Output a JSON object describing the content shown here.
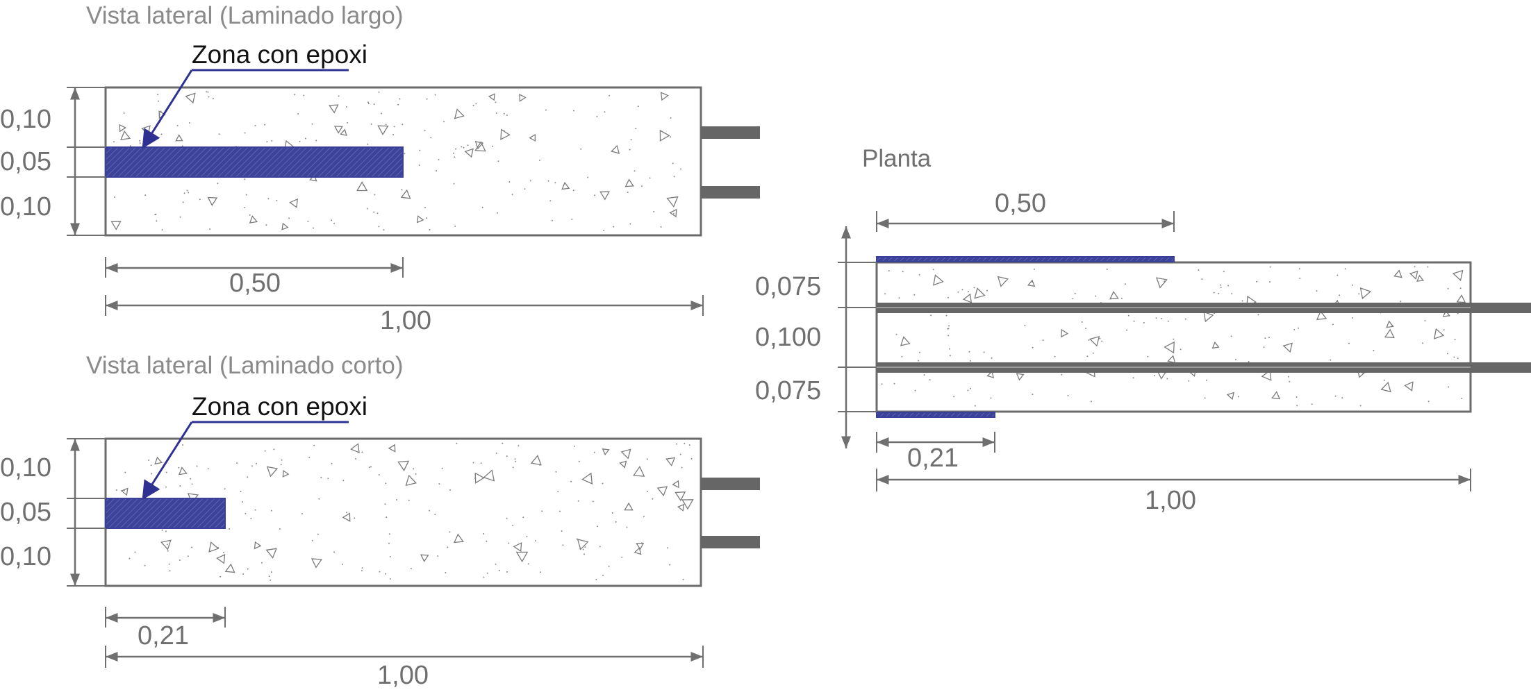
{
  "views": {
    "long": {
      "title": "Vista lateral (Laminado largo)",
      "callout": "Zona con epoxi",
      "dim_top": "0,10",
      "dim_mid": "0,05",
      "dim_bot": "0,10",
      "dim_epoxy_length": "0,50",
      "dim_total": "1,00"
    },
    "short": {
      "title": "Vista lateral (Laminado corto)",
      "callout": "Zona con epoxi",
      "dim_top": "0,10",
      "dim_mid": "0,05",
      "dim_bot": "0,10",
      "dim_epoxy_length": "0,21",
      "dim_total": "1,00"
    },
    "plan": {
      "title": "Planta",
      "dim_top_length": "0,50",
      "dim_a": "0,075",
      "dim_b": "0,100",
      "dim_c": "0,075",
      "dim_bottom_length": "0,21",
      "dim_total": "1,00"
    }
  },
  "colors": {
    "epoxy": "#3a3f9a",
    "concrete_outline": "#6b6b6b",
    "rebar": "#666666",
    "dimension": "#6f6f6f"
  }
}
